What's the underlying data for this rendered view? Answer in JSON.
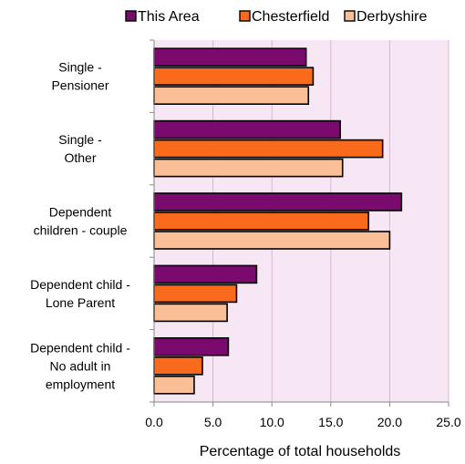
{
  "chart_data": {
    "type": "bar",
    "orientation": "horizontal",
    "title": "",
    "xlabel": "Percentage of total households",
    "ylabel": "",
    "xlim": [
      0,
      25
    ],
    "x_ticks": [
      "0.0",
      "5.0",
      "10.0",
      "15.0",
      "20.0",
      "25.0"
    ],
    "grid": true,
    "legend_position": "top",
    "plot_background": "#f7e6f4",
    "categories": [
      [
        "Single -",
        "Pensioner"
      ],
      [
        "Single -",
        "Other"
      ],
      [
        "Dependent",
        "children - couple"
      ],
      [
        "Dependent child -",
        "Lone Parent"
      ],
      [
        "Dependent child -",
        "No adult in",
        "employment"
      ]
    ],
    "series": [
      {
        "name": "This Area",
        "color": "#7b0a6e",
        "values": [
          12.9,
          15.8,
          21.0,
          8.7,
          6.3
        ]
      },
      {
        "name": "Chesterfield",
        "color": "#fa6a1c",
        "values": [
          13.5,
          19.4,
          18.2,
          7.0,
          4.1
        ]
      },
      {
        "name": "Derbyshire",
        "color": "#fbbf97",
        "values": [
          13.1,
          16.0,
          20.0,
          6.2,
          3.4
        ]
      }
    ]
  }
}
